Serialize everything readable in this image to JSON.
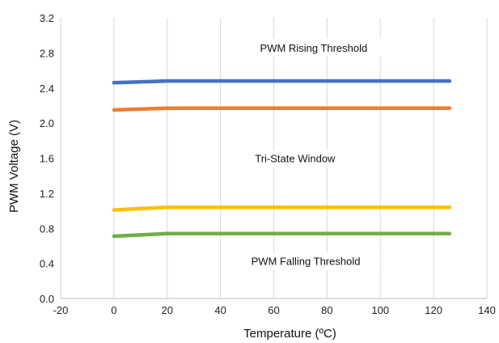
{
  "chart_data": {
    "type": "line",
    "xlabel": "Temperature (ºC)",
    "ylabel": "PWM Voltage (V)",
    "xlim": [
      -20,
      140
    ],
    "ylim": [
      0,
      3.2
    ],
    "x_ticks": [
      -20,
      0,
      20,
      40,
      60,
      80,
      100,
      120,
      140
    ],
    "y_ticks": [
      "0.0",
      "0.4",
      "0.8",
      "1.2",
      "1.6",
      "2.0",
      "2.4",
      "2.8",
      "3.2"
    ],
    "grid": "vertical",
    "series": [
      {
        "color": "#4472C4",
        "x": [
          0,
          20,
          40,
          60,
          80,
          100,
          126
        ],
        "y": [
          2.46,
          2.48,
          2.48,
          2.48,
          2.48,
          2.48,
          2.48
        ]
      },
      {
        "color": "#ED7D31",
        "x": [
          0,
          20,
          40,
          60,
          80,
          100,
          126
        ],
        "y": [
          2.15,
          2.17,
          2.17,
          2.17,
          2.17,
          2.17,
          2.17
        ]
      },
      {
        "color": "#FFC000",
        "x": [
          0,
          20,
          40,
          60,
          80,
          100,
          126
        ],
        "y": [
          1.01,
          1.04,
          1.04,
          1.04,
          1.04,
          1.04,
          1.04
        ]
      },
      {
        "color": "#70AD47",
        "x": [
          0,
          20,
          40,
          60,
          80,
          100,
          126
        ],
        "y": [
          0.71,
          0.74,
          0.74,
          0.74,
          0.74,
          0.74,
          0.74
        ]
      }
    ],
    "annotations": [
      {
        "text": "PWM Rising Threshold",
        "x": 75,
        "y": 2.86
      },
      {
        "text": "Tri-State Window",
        "x": 68,
        "y": 1.6
      },
      {
        "text": "PWM Falling Threshold",
        "x": 72,
        "y": 0.43
      }
    ]
  }
}
